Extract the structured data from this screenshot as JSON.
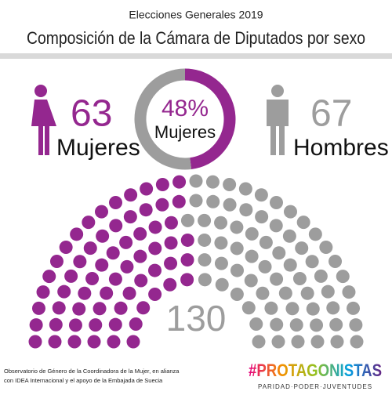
{
  "header": {
    "subtitle": "Elecciones Generales 2019",
    "title": "Composición de la Cámara de Diputados por sexo"
  },
  "chart_data": [
    {
      "type": "donut",
      "slices": [
        {
          "name": "Mujeres",
          "value": 48,
          "value_label": "48%",
          "color": "#94278f"
        },
        {
          "value": 52,
          "color": "#9d9d9d"
        }
      ]
    },
    {
      "type": "parliament",
      "total": 130,
      "series": [
        {
          "name": "Mujeres",
          "values": 63,
          "color": "#94278f"
        },
        {
          "name": "Hombres",
          "values": 67,
          "color": "#9d9d9d"
        }
      ]
    }
  ],
  "footer": {
    "credit": [
      "Observatorio de Género de la Coordinadora de la Mujer, en alianza",
      "con IDEA Internacional y el apoyo de la Embajada de Suecia"
    ],
    "brand": "#PROTAGONISTAS",
    "tagline": "PARIDAD·PODER·JUVENTUDES"
  }
}
